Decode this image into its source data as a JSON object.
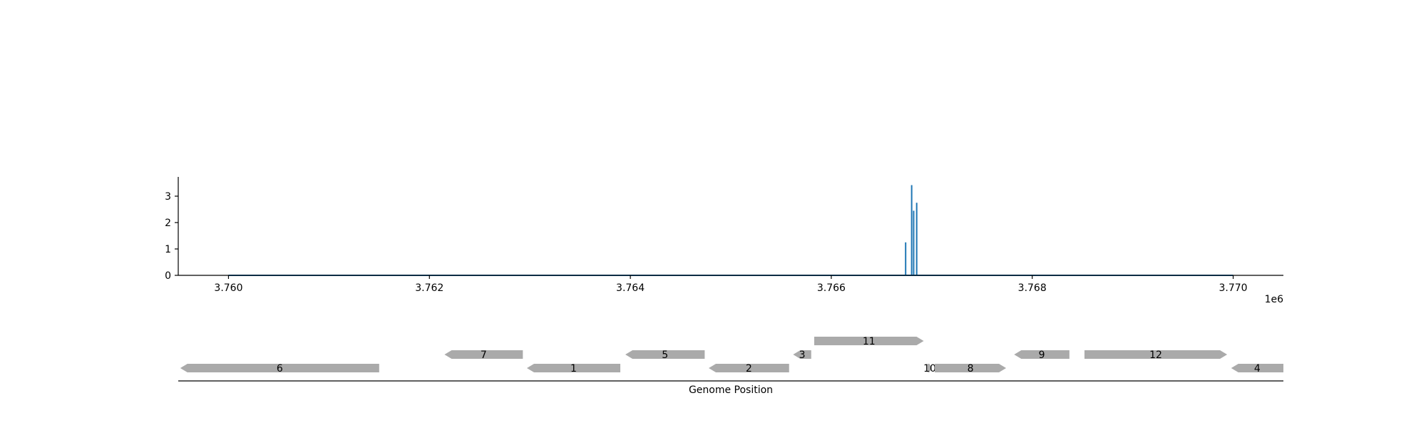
{
  "chart_data": [
    {
      "type": "line",
      "title": "",
      "xlabel": "",
      "ylabel": "",
      "x_offset_label": "1e6",
      "xlim": [
        3.7595,
        3.7705
      ],
      "ylim": [
        0,
        3.75
      ],
      "xticks": [
        3.76,
        3.762,
        3.764,
        3.766,
        3.768,
        3.77
      ],
      "xtick_labels": [
        "3.760",
        "3.762",
        "3.764",
        "3.766",
        "3.768",
        "3.770"
      ],
      "yticks": [
        0,
        1,
        2,
        3
      ],
      "ytick_labels": [
        "0",
        "1",
        "2",
        "3"
      ],
      "grid": false,
      "series": [
        {
          "color": "#1f77b4",
          "baseline": {
            "x_start": 3.76,
            "x_end": 3.77,
            "y": 0
          },
          "peaks": [
            {
              "x": 3.76674,
              "y": 1.25
            },
            {
              "x": 3.7668,
              "y": 3.42
            },
            {
              "x": 3.76682,
              "y": 2.45
            },
            {
              "x": 3.76685,
              "y": 2.75
            }
          ]
        }
      ]
    },
    {
      "type": "gene_track",
      "xlabel": "Genome Position",
      "xlim": [
        3.7595,
        3.7705
      ],
      "gene_color": "#aaaaaa",
      "genes": [
        {
          "label": "6",
          "start": 3.75952,
          "end": 3.7615,
          "strand": "-",
          "row": 0
        },
        {
          "label": "7",
          "start": 3.76215,
          "end": 3.76293,
          "strand": "-",
          "row": 1
        },
        {
          "label": "1",
          "start": 3.76297,
          "end": 3.7639,
          "strand": "-",
          "row": 0
        },
        {
          "label": "5",
          "start": 3.76395,
          "end": 3.76474,
          "strand": "-",
          "row": 1
        },
        {
          "label": "2",
          "start": 3.76478,
          "end": 3.76558,
          "strand": "-",
          "row": 0
        },
        {
          "label": "3",
          "start": 3.76562,
          "end": 3.7658,
          "strand": "-",
          "row": 1
        },
        {
          "label": "11",
          "start": 3.76583,
          "end": 3.76692,
          "strand": "+",
          "row": 2
        },
        {
          "label": "10",
          "start": 3.76696,
          "end": 3.767,
          "strand": "+",
          "row": 0
        },
        {
          "label": "8",
          "start": 3.76703,
          "end": 3.76774,
          "strand": "+",
          "row": 0
        },
        {
          "label": "9",
          "start": 3.76782,
          "end": 3.76837,
          "strand": "-",
          "row": 1
        },
        {
          "label": "12",
          "start": 3.76852,
          "end": 3.76994,
          "strand": "+",
          "row": 1
        },
        {
          "label": "4",
          "start": 3.76998,
          "end": 3.7705,
          "strand": "-",
          "row": 0
        }
      ]
    }
  ]
}
